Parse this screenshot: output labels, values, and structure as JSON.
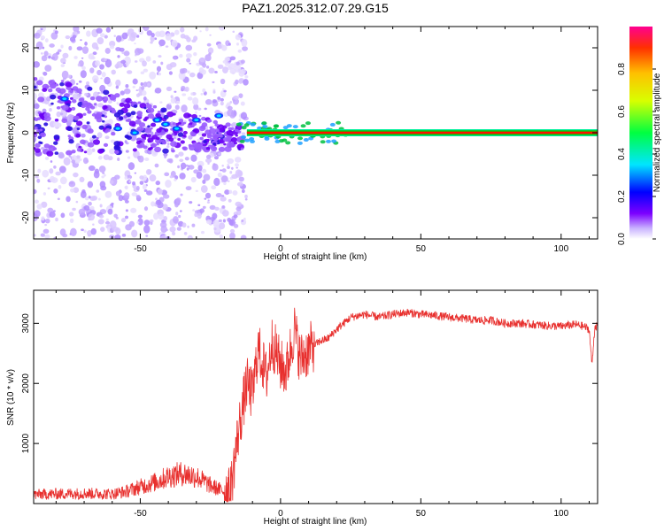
{
  "title": "PAZ1.2025.312.07.29.G15",
  "chart_data": [
    {
      "type": "heatmap",
      "xlabel": "Height of straight line (km)",
      "ylabel": "Frequency (Hz)",
      "xlim": [
        -88,
        113
      ],
      "ylim": [
        -25,
        25
      ],
      "xticks": [
        -50,
        0,
        50,
        100
      ],
      "yticks": [
        -20,
        -10,
        0,
        10,
        20
      ],
      "colorbar": {
        "label": "Normalized spectral amplitude",
        "range": [
          0,
          1
        ],
        "ticks": [
          "0.0",
          "0.2",
          "0.4",
          "0.6",
          "0.8"
        ]
      },
      "features": [
        {
          "name": "carrier line",
          "from_km": -12,
          "to_km": 113,
          "frequency_hz": 0,
          "amplitude": 1.0
        },
        {
          "name": "scattered turbulence",
          "from_km": -88,
          "to_km": -12,
          "frequency_range_hz": [
            -25,
            25
          ],
          "amplitude": 0.15
        }
      ]
    },
    {
      "type": "line",
      "xlabel": "Height of straight line (km)",
      "ylabel": "SNR (10 * v/v)",
      "xlim": [
        -88,
        113
      ],
      "ylim": [
        0,
        3550
      ],
      "xticks": [
        -50,
        0,
        50,
        100
      ],
      "yticks": [
        1000,
        2000,
        3000
      ],
      "color": "#e8302e",
      "x": [
        -88,
        -80,
        -70,
        -60,
        -55,
        -50,
        -45,
        -40,
        -35,
        -30,
        -25,
        -20,
        -18,
        -15,
        -12,
        -10,
        -8,
        -5,
        -3,
        0,
        2,
        5,
        7,
        9,
        11,
        14,
        17,
        20,
        25,
        30,
        35,
        40,
        45,
        50,
        55,
        60,
        65,
        70,
        75,
        80,
        85,
        90,
        95,
        100,
        105,
        108,
        110,
        111,
        112,
        113
      ],
      "y": [
        150,
        160,
        170,
        160,
        200,
        280,
        350,
        450,
        500,
        450,
        300,
        200,
        150,
        1200,
        2000,
        1800,
        2600,
        2100,
        2700,
        2300,
        2200,
        2900,
        2400,
        2500,
        2600,
        2700,
        2750,
        2900,
        3100,
        3150,
        3100,
        3150,
        3180,
        3150,
        3130,
        3100,
        3080,
        3050,
        3050,
        3000,
        3000,
        2980,
        2960,
        2950,
        2980,
        2950,
        2900,
        2300,
        2950,
        2950
      ]
    }
  ]
}
